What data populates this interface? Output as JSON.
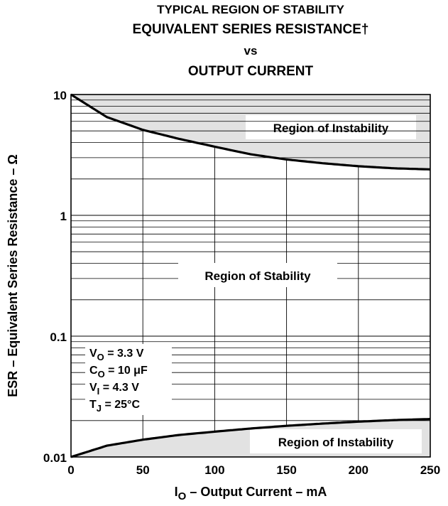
{
  "titles": {
    "line1": "TYPICAL REGION OF STABILITY",
    "line2": "EQUIVALENT SERIES RESISTANCE†",
    "line3": "vs",
    "line4": "OUTPUT CURRENT"
  },
  "chart_data": {
    "type": "area",
    "xlabel": {
      "main": "I",
      "sub": "O",
      "rest": " – Output Current – mA"
    },
    "ylabel": "ESR – Equivalent Series Resistance – Ω",
    "xlim": [
      0,
      250
    ],
    "ylim": [
      0.01,
      10
    ],
    "yscale": "log",
    "grid": true,
    "x_ticks": [
      "0",
      "50",
      "100",
      "150",
      "200",
      "250"
    ],
    "x_tick_values": [
      0,
      50,
      100,
      150,
      200,
      250
    ],
    "y_ticks": [
      "0.01",
      "0.1",
      "1",
      "10"
    ],
    "y_tick_values": [
      0.01,
      0.1,
      1,
      10
    ],
    "series": [
      {
        "name": "Upper boundary",
        "x": [
          0,
          25,
          50,
          75,
          100,
          125,
          150,
          175,
          200,
          225,
          250
        ],
        "values": [
          10,
          6.5,
          5.1,
          4.3,
          3.7,
          3.2,
          2.9,
          2.7,
          2.55,
          2.45,
          2.4
        ]
      },
      {
        "name": "Lower boundary",
        "x": [
          0,
          25,
          50,
          75,
          100,
          125,
          150,
          175,
          200,
          225,
          250
        ],
        "values": [
          0.01,
          0.0124,
          0.0139,
          0.0152,
          0.0162,
          0.0172,
          0.0181,
          0.0189,
          0.0196,
          0.0202,
          0.0206
        ]
      }
    ],
    "region_labels": {
      "upper": "Region of Instability",
      "middle": "Region of Stability",
      "lower": "Region of Instability"
    },
    "conditions": [
      {
        "sym": "V",
        "sub": "O",
        "rest": " = 3.3 V"
      },
      {
        "sym": "C",
        "sub": "O",
        "rest": " = 10 μF"
      },
      {
        "sym": "V",
        "sub": "I",
        "rest": " = 4.3 V"
      },
      {
        "sym": "T",
        "sub": "J",
        "rest": " = 25°C"
      }
    ],
    "colors": {
      "instability_fill": "#e2e2e2",
      "line": "#000000",
      "grid": "#000000"
    }
  }
}
